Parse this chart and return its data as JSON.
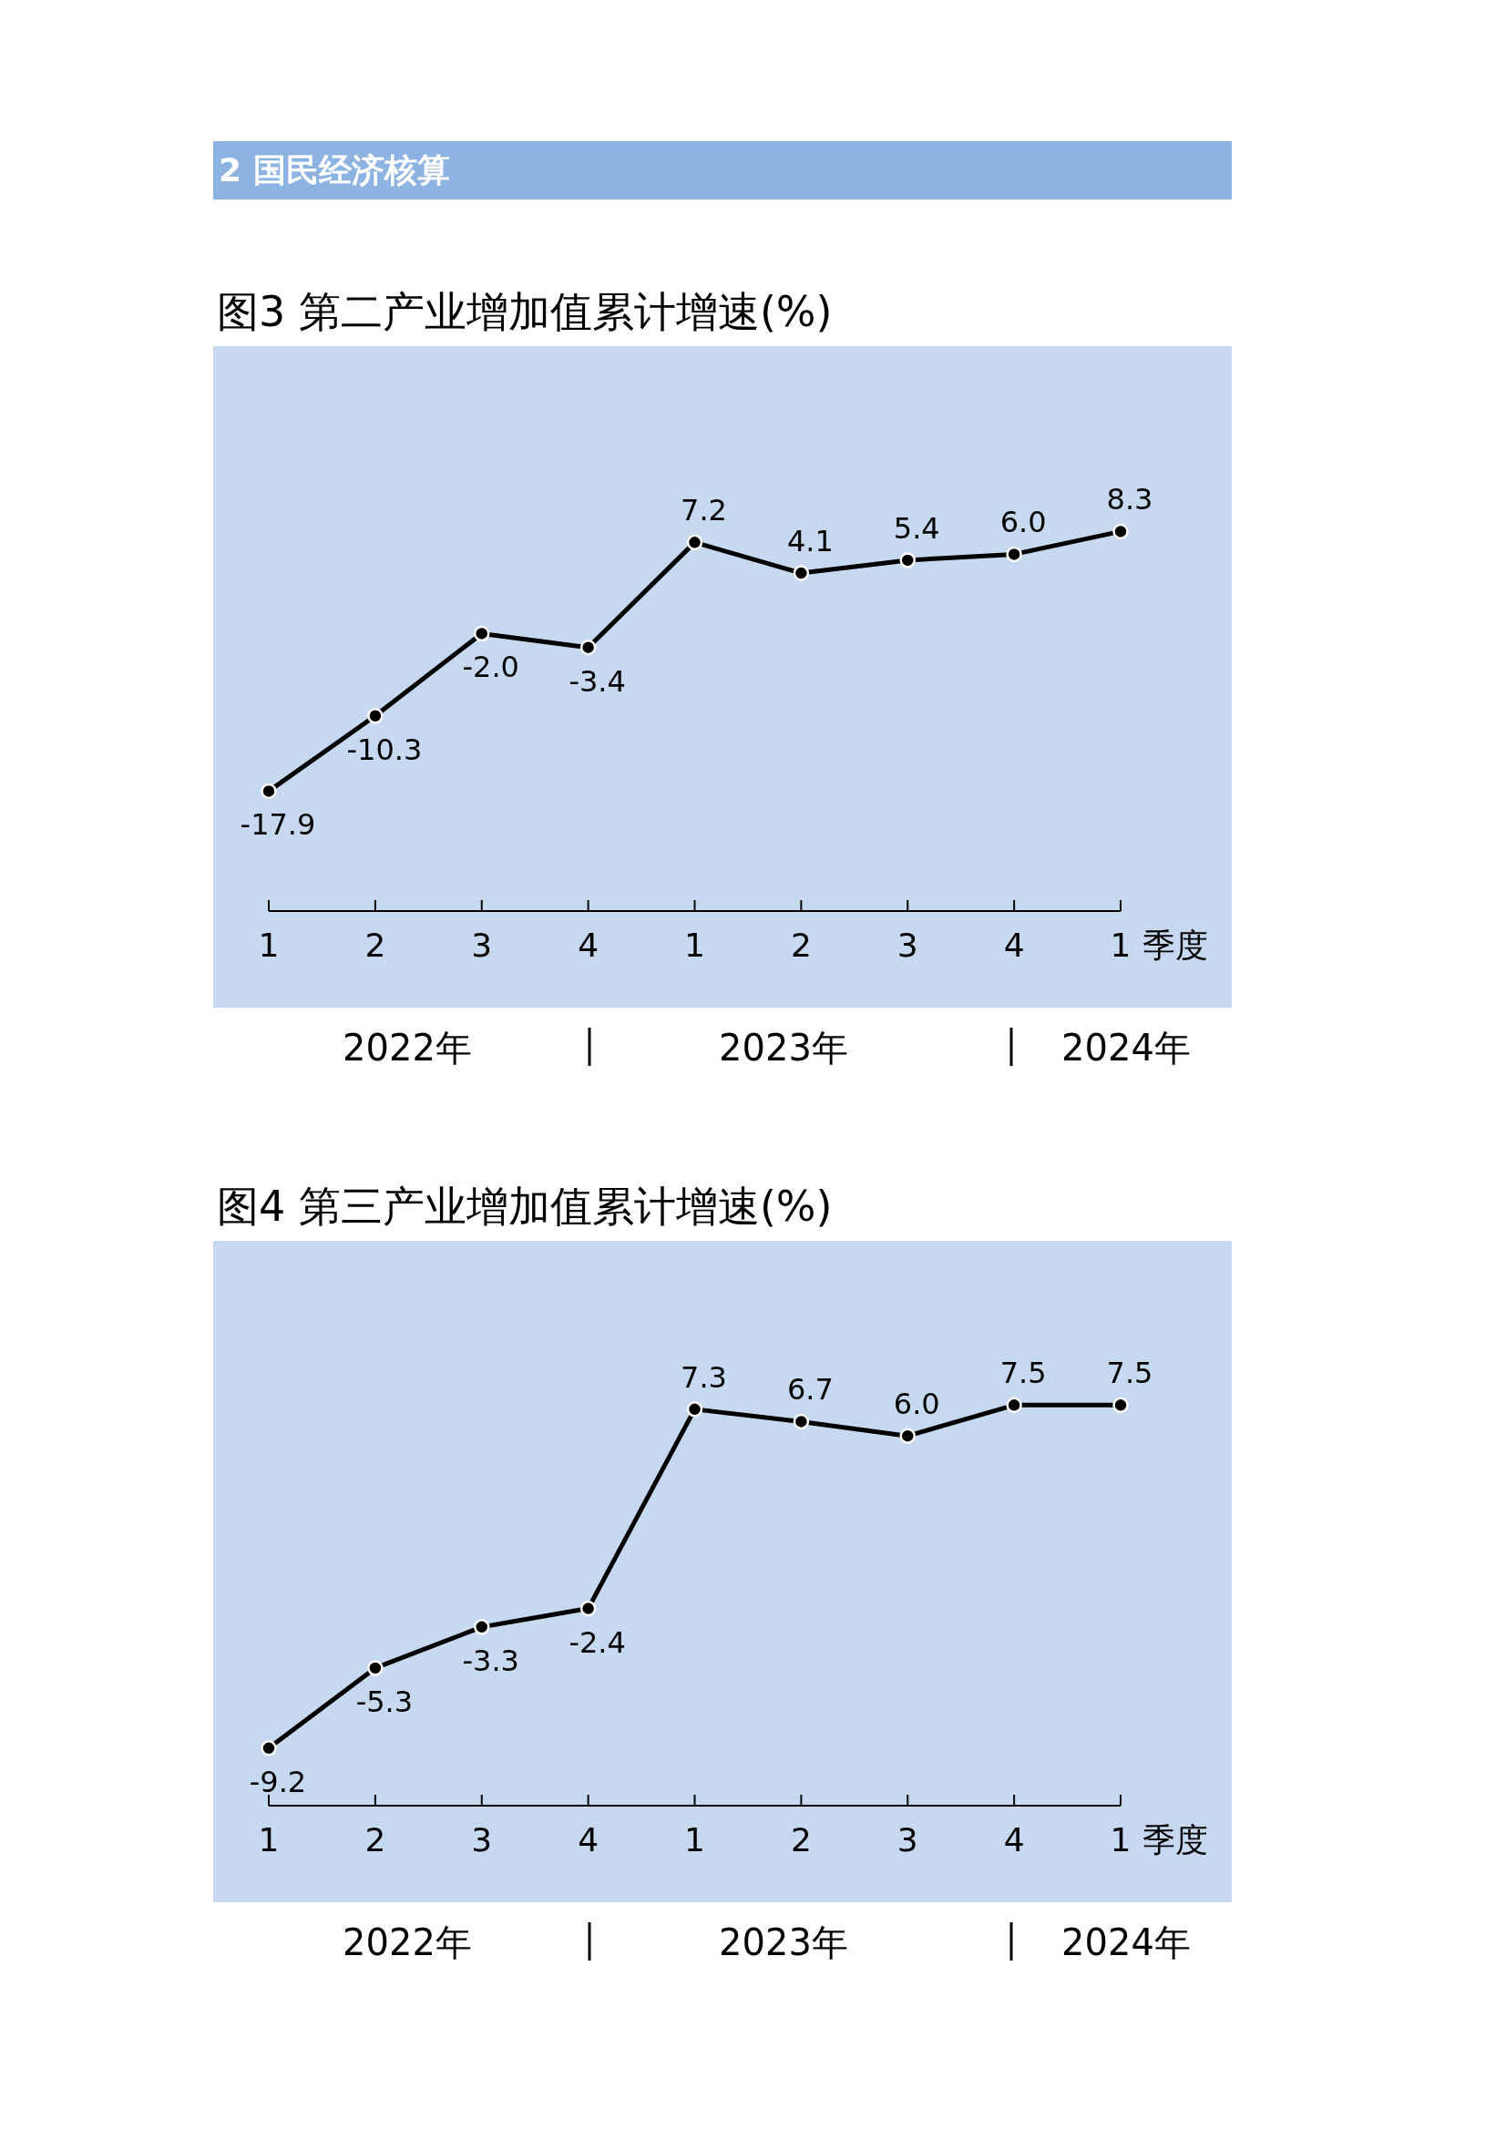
{
  "chart_data": [
    {
      "type": "other",
      "title": "2 国民经济核算",
      "color": "#8db3e2"
    },
    {
      "type": "line",
      "title": "图3  第二产业增加值累计增速(%)",
      "xlabel": "季度",
      "categories": [
        "1",
        "2",
        "3",
        "4",
        "1",
        "2",
        "3",
        "4",
        "1"
      ],
      "ylim": [
        -30,
        27
      ],
      "marker": "circle",
      "series": [
        {
          "color": "#000000",
          "values": [
            -17.9,
            -10.3,
            -2.0,
            -3.4,
            7.2,
            4.1,
            5.4,
            6.0,
            8.3
          ],
          "value_labels": [
            "-17.9",
            "-10.3",
            "-2.0",
            "-3.4",
            "7.2",
            "4.1",
            "5.4",
            "6.0",
            "8.3"
          ]
        }
      ],
      "annotations": [
        "2022年",
        "2023年",
        "2024年"
      ]
    },
    {
      "type": "line",
      "title": "图4  第三产业增加值累计增速(%)",
      "xlabel": "季度",
      "categories": [
        "1",
        "2",
        "3",
        "4",
        "1",
        "2",
        "3",
        "4",
        "1"
      ],
      "ylim": [
        -12,
        15.5
      ],
      "marker": "circle",
      "series": [
        {
          "color": "#000000",
          "values": [
            -9.2,
            -5.3,
            -3.3,
            -2.4,
            7.3,
            6.7,
            6.0,
            7.5,
            7.5
          ],
          "value_labels": [
            "-9.2",
            "-5.3",
            "-3.3",
            "-2.4",
            "7.3",
            "6.7",
            "6.0",
            "7.5",
            "7.5"
          ]
        }
      ],
      "annotations": [
        "2022年",
        "2023年",
        "2024年"
      ]
    }
  ]
}
